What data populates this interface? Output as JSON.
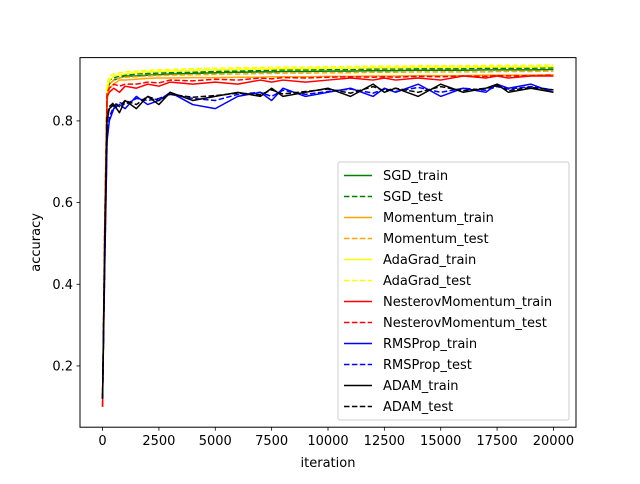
{
  "chart_data": {
    "type": "line",
    "title": "",
    "xlabel": "iteration",
    "ylabel": "accuracy",
    "xlim": [
      -1000,
      21000
    ],
    "ylim": [
      0.05,
      0.955
    ],
    "xticks": [
      0,
      2500,
      5000,
      7500,
      10000,
      12500,
      15000,
      17500,
      20000
    ],
    "yticks": [
      0.2,
      0.4,
      0.6,
      0.8
    ],
    "grid": false,
    "legend_position": "lower right",
    "x": [
      0,
      100,
      200,
      300,
      500,
      750,
      1000,
      1500,
      2000,
      2500,
      3000,
      4000,
      5000,
      6000,
      7000,
      7500,
      8000,
      9000,
      10000,
      11000,
      12000,
      12500,
      13000,
      14000,
      15000,
      16000,
      17000,
      17500,
      18000,
      19000,
      20000
    ],
    "series": [
      {
        "name": "SGD_train",
        "color": "#008000",
        "dash": "solid",
        "values": [
          0.12,
          0.5,
          0.86,
          0.89,
          0.9,
          0.905,
          0.91,
          0.91,
          0.912,
          0.913,
          0.915,
          0.916,
          0.918,
          0.919,
          0.92,
          0.92,
          0.921,
          0.921,
          0.922,
          0.922,
          0.923,
          0.923,
          0.923,
          0.924,
          0.924,
          0.924,
          0.925,
          0.925,
          0.925,
          0.925,
          0.926
        ]
      },
      {
        "name": "SGD_test",
        "color": "#008000",
        "dash": "dashed",
        "values": [
          0.12,
          0.5,
          0.87,
          0.9,
          0.905,
          0.91,
          0.912,
          0.915,
          0.916,
          0.917,
          0.918,
          0.919,
          0.921,
          0.922,
          0.923,
          0.924,
          0.925,
          0.925,
          0.926,
          0.926,
          0.927,
          0.927,
          0.927,
          0.928,
          0.928,
          0.928,
          0.929,
          0.929,
          0.929,
          0.929,
          0.93
        ]
      },
      {
        "name": "Momentum_train",
        "color": "#ffa500",
        "dash": "solid",
        "values": [
          0.12,
          0.52,
          0.85,
          0.88,
          0.89,
          0.9,
          0.9,
          0.902,
          0.904,
          0.905,
          0.905,
          0.906,
          0.906,
          0.907,
          0.907,
          0.908,
          0.908,
          0.908,
          0.909,
          0.909,
          0.91,
          0.91,
          0.91,
          0.911,
          0.911,
          0.911,
          0.912,
          0.912,
          0.912,
          0.912,
          0.913
        ]
      },
      {
        "name": "Momentum_test",
        "color": "#ffa500",
        "dash": "dashed",
        "values": [
          0.12,
          0.52,
          0.86,
          0.89,
          0.9,
          0.905,
          0.907,
          0.908,
          0.91,
          0.911,
          0.912,
          0.913,
          0.914,
          0.915,
          0.916,
          0.916,
          0.917,
          0.917,
          0.918,
          0.918,
          0.919,
          0.919,
          0.919,
          0.92,
          0.92,
          0.92,
          0.92,
          0.921,
          0.921,
          0.921,
          0.922
        ]
      },
      {
        "name": "AdaGrad_train",
        "color": "#ffff00",
        "dash": "solid",
        "values": [
          0.12,
          0.55,
          0.88,
          0.9,
          0.91,
          0.912,
          0.915,
          0.918,
          0.92,
          0.921,
          0.922,
          0.924,
          0.925,
          0.926,
          0.927,
          0.927,
          0.928,
          0.928,
          0.929,
          0.929,
          0.93,
          0.93,
          0.93,
          0.931,
          0.931,
          0.931,
          0.932,
          0.932,
          0.932,
          0.932,
          0.933
        ]
      },
      {
        "name": "AdaGrad_test",
        "color": "#ffff00",
        "dash": "dashed",
        "values": [
          0.12,
          0.55,
          0.89,
          0.91,
          0.915,
          0.918,
          0.92,
          0.922,
          0.924,
          0.925,
          0.926,
          0.928,
          0.929,
          0.93,
          0.931,
          0.931,
          0.932,
          0.932,
          0.933,
          0.933,
          0.934,
          0.934,
          0.934,
          0.935,
          0.935,
          0.935,
          0.936,
          0.936,
          0.936,
          0.936,
          0.937
        ]
      },
      {
        "name": "NesterovMomentum_train",
        "color": "#ff0000",
        "dash": "solid",
        "values": [
          0.1,
          0.55,
          0.86,
          0.87,
          0.88,
          0.87,
          0.885,
          0.88,
          0.89,
          0.885,
          0.895,
          0.89,
          0.895,
          0.89,
          0.9,
          0.895,
          0.9,
          0.895,
          0.9,
          0.905,
          0.9,
          0.905,
          0.9,
          0.905,
          0.9,
          0.91,
          0.905,
          0.91,
          0.905,
          0.91,
          0.91
        ]
      },
      {
        "name": "NesterovMomentum_test",
        "color": "#ff0000",
        "dash": "dashed",
        "values": [
          0.1,
          0.56,
          0.87,
          0.88,
          0.89,
          0.885,
          0.89,
          0.89,
          0.895,
          0.893,
          0.9,
          0.898,
          0.902,
          0.9,
          0.905,
          0.903,
          0.906,
          0.905,
          0.907,
          0.908,
          0.907,
          0.908,
          0.907,
          0.909,
          0.908,
          0.91,
          0.909,
          0.911,
          0.91,
          0.911,
          0.912
        ]
      },
      {
        "name": "RMSProp_train",
        "color": "#0000ff",
        "dash": "solid",
        "values": [
          0.12,
          0.45,
          0.75,
          0.8,
          0.83,
          0.84,
          0.83,
          0.86,
          0.84,
          0.85,
          0.87,
          0.84,
          0.83,
          0.86,
          0.87,
          0.85,
          0.88,
          0.86,
          0.87,
          0.88,
          0.86,
          0.88,
          0.87,
          0.89,
          0.86,
          0.88,
          0.87,
          0.89,
          0.88,
          0.89,
          0.87
        ]
      },
      {
        "name": "RMSProp_test",
        "color": "#0000ff",
        "dash": "dashed",
        "values": [
          0.12,
          0.46,
          0.76,
          0.81,
          0.835,
          0.845,
          0.84,
          0.855,
          0.85,
          0.855,
          0.865,
          0.855,
          0.85,
          0.865,
          0.87,
          0.86,
          0.875,
          0.865,
          0.872,
          0.878,
          0.868,
          0.878,
          0.872,
          0.882,
          0.87,
          0.88,
          0.875,
          0.884,
          0.878,
          0.884,
          0.876
        ]
      },
      {
        "name": "ADAM_train",
        "color": "#000000",
        "dash": "solid",
        "values": [
          0.12,
          0.5,
          0.8,
          0.83,
          0.84,
          0.82,
          0.85,
          0.83,
          0.86,
          0.84,
          0.87,
          0.85,
          0.86,
          0.87,
          0.86,
          0.88,
          0.86,
          0.87,
          0.88,
          0.86,
          0.89,
          0.87,
          0.88,
          0.86,
          0.89,
          0.87,
          0.88,
          0.89,
          0.87,
          0.88,
          0.87
        ]
      },
      {
        "name": "ADAM_test",
        "color": "#000000",
        "dash": "dashed",
        "values": [
          0.12,
          0.5,
          0.81,
          0.835,
          0.845,
          0.835,
          0.85,
          0.84,
          0.86,
          0.85,
          0.865,
          0.858,
          0.862,
          0.868,
          0.864,
          0.876,
          0.866,
          0.872,
          0.878,
          0.868,
          0.884,
          0.874,
          0.88,
          0.87,
          0.884,
          0.874,
          0.88,
          0.886,
          0.874,
          0.882,
          0.876
        ]
      }
    ]
  }
}
